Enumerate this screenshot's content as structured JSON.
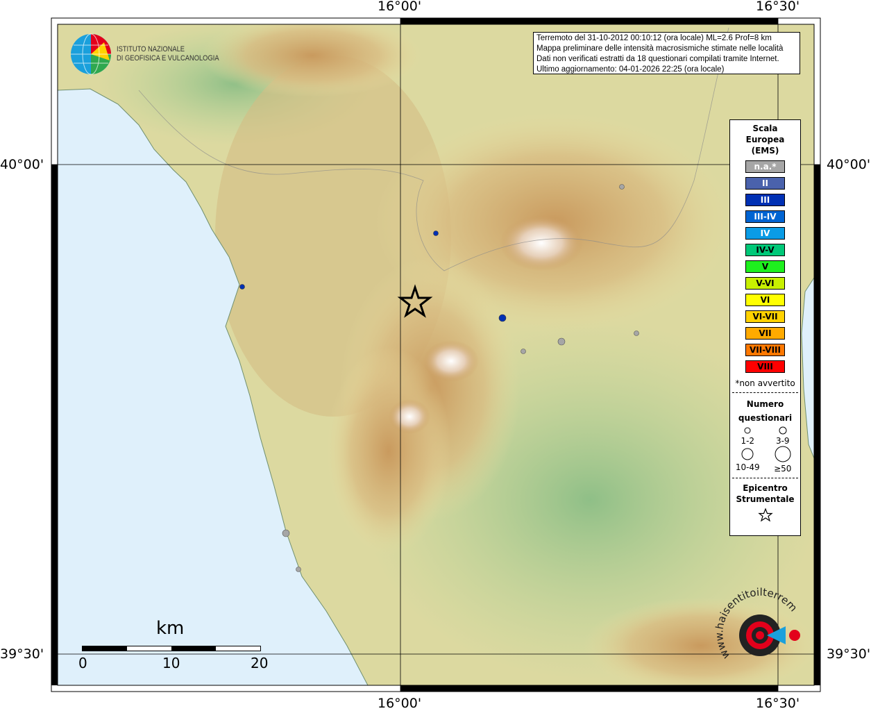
{
  "axes": {
    "lon_ticks": [
      "16°00'",
      "16°30'"
    ],
    "lat_ticks": [
      "40°00'",
      "39°30'"
    ]
  },
  "institute_logo": {
    "line1": "ISTITUTO NAZIONALE",
    "line2": "DI GEOFISICA E VULCANOLOGIA"
  },
  "info_box": {
    "line1": "Terremoto del 31-10-2012 00:10:12 (ora locale) ML=2.6 Prof=8 km",
    "line2": "Mappa preliminare delle intensità macrosismiche stimate nelle località",
    "line3": "Dati non verificati estratti da 18 questionari compilati tramite Internet.",
    "line4": "Ultimo aggiornamento: 04-01-2026 22:25 (ora locale)"
  },
  "legend": {
    "title1": "Scala",
    "title2": "Europea",
    "title3": "(EMS)",
    "classes": [
      {
        "label": "n.a.*",
        "color": "#a6a6a6",
        "text": "#ffffff"
      },
      {
        "label": "II",
        "color": "#4a62ac",
        "text": "#ffffff"
      },
      {
        "label": "III",
        "color": "#0030b4",
        "text": "#ffffff"
      },
      {
        "label": "III-IV",
        "color": "#0064d2",
        "text": "#ffffff"
      },
      {
        "label": "IV",
        "color": "#0a9ce6",
        "text": "#ffffff"
      },
      {
        "label": "IV-V",
        "color": "#00c878",
        "text": "#000000"
      },
      {
        "label": "V",
        "color": "#1ef01e",
        "text": "#000000"
      },
      {
        "label": "V-VI",
        "color": "#c8f000",
        "text": "#000000"
      },
      {
        "label": "VI",
        "color": "#ffff00",
        "text": "#000000"
      },
      {
        "label": "VI-VII",
        "color": "#ffd200",
        "text": "#000000"
      },
      {
        "label": "VII",
        "color": "#ffaa00",
        "text": "#000000"
      },
      {
        "label": "VII-VIII",
        "color": "#ff7800",
        "text": "#000000"
      },
      {
        "label": "VIII",
        "color": "#ff0000",
        "text": "#000000"
      }
    ],
    "footnote": "*non avvertito",
    "count_title1": "Numero",
    "count_title2": "questionari",
    "counts": [
      "1-2",
      "3-9",
      "10-49",
      "≥50"
    ],
    "epicenter_title1": "Epicentro",
    "epicenter_title2": "Strumentale"
  },
  "scale_bar": {
    "unit": "km",
    "labels": [
      "0",
      "10",
      "20"
    ]
  },
  "watermark": "www.haisentitoilterremoto.it",
  "epicenter_icon": "star-icon",
  "observations": [
    {
      "class": "III",
      "size": "1-2"
    },
    {
      "class": "III",
      "size": "1-2"
    },
    {
      "class": "III",
      "size": "3-9"
    },
    {
      "class": "n.a.*",
      "size": "1-2"
    },
    {
      "class": "n.a.*",
      "size": "3-9"
    },
    {
      "class": "n.a.*",
      "size": "1-2"
    },
    {
      "class": "n.a.*",
      "size": "1-2"
    },
    {
      "class": "n.a.*",
      "size": "3-9"
    },
    {
      "class": "n.a.*",
      "size": "1-2"
    }
  ]
}
